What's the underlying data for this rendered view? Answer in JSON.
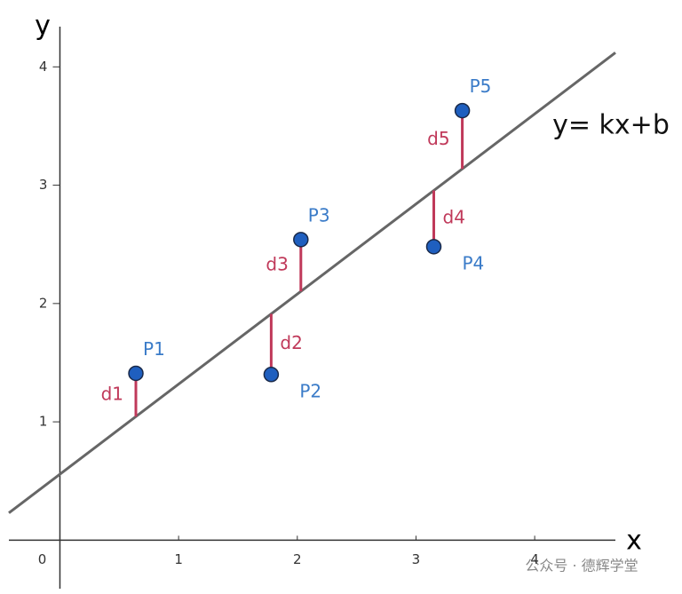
{
  "chart_data": {
    "type": "scatter",
    "x_label": "x",
    "y_label": "y",
    "annotation": "y= kx+b",
    "xlim": [
      -0.43,
      4.68
    ],
    "ylim": [
      -0.41,
      4.34
    ],
    "xticks": [
      0,
      1,
      2,
      3,
      4
    ],
    "yticks": [
      1,
      2,
      3,
      4
    ],
    "series": [
      {
        "name": "P",
        "color": "#1f5fbf",
        "labels": [
          "P1",
          "P2",
          "P3",
          "P4",
          "P5"
        ],
        "residual_labels": [
          "d1",
          "d2",
          "d3",
          "d4",
          "d5"
        ],
        "x": [
          0.64,
          1.78,
          2.03,
          3.15,
          3.39
        ],
        "values": [
          1.41,
          1.4,
          2.54,
          2.48,
          3.63
        ]
      }
    ],
    "fit": {
      "color": "#666666",
      "x": [
        -0.43,
        4.68
      ],
      "values": [
        0.23,
        4.12
      ]
    },
    "residual_color": "#c0395a",
    "watermark": "公众号 · 德辉学堂"
  }
}
